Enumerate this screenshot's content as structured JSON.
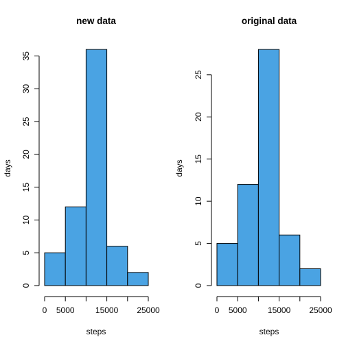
{
  "chart_data": [
    {
      "type": "bar",
      "title": "new data",
      "xlabel": "steps",
      "ylabel": "days",
      "bins": [
        [
          0,
          5000
        ],
        [
          5000,
          10000
        ],
        [
          10000,
          15000
        ],
        [
          15000,
          20000
        ],
        [
          20000,
          25000
        ]
      ],
      "values": [
        5,
        12,
        36,
        6,
        2
      ],
      "xlim": [
        0,
        25000
      ],
      "ylim": [
        0,
        36
      ],
      "xticks": [
        0,
        5000,
        10000,
        15000,
        20000,
        25000
      ],
      "xtick_labels": [
        "0",
        "5000",
        "",
        "15000",
        "",
        "25000"
      ],
      "yticks": [
        0,
        5,
        10,
        15,
        20,
        25,
        30,
        35
      ],
      "ytick_labels": [
        "0",
        "5",
        "10",
        "15",
        "20",
        "25",
        "30",
        "35"
      ],
      "bar_color": "#4aa3e3"
    },
    {
      "type": "bar",
      "title": "original data",
      "xlabel": "steps",
      "ylabel": "days",
      "bins": [
        [
          0,
          5000
        ],
        [
          5000,
          10000
        ],
        [
          10000,
          15000
        ],
        [
          15000,
          20000
        ],
        [
          20000,
          25000
        ]
      ],
      "values": [
        5,
        12,
        28,
        6,
        2
      ],
      "xlim": [
        0,
        25000
      ],
      "ylim": [
        0,
        28
      ],
      "xticks": [
        0,
        5000,
        10000,
        15000,
        20000,
        25000
      ],
      "xtick_labels": [
        "0",
        "5000",
        "",
        "15000",
        "",
        "25000"
      ],
      "yticks": [
        0,
        5,
        10,
        15,
        20,
        25
      ],
      "ytick_labels": [
        "0",
        "5",
        "10",
        "15",
        "20",
        "25"
      ],
      "bar_color": "#4aa3e3"
    }
  ]
}
